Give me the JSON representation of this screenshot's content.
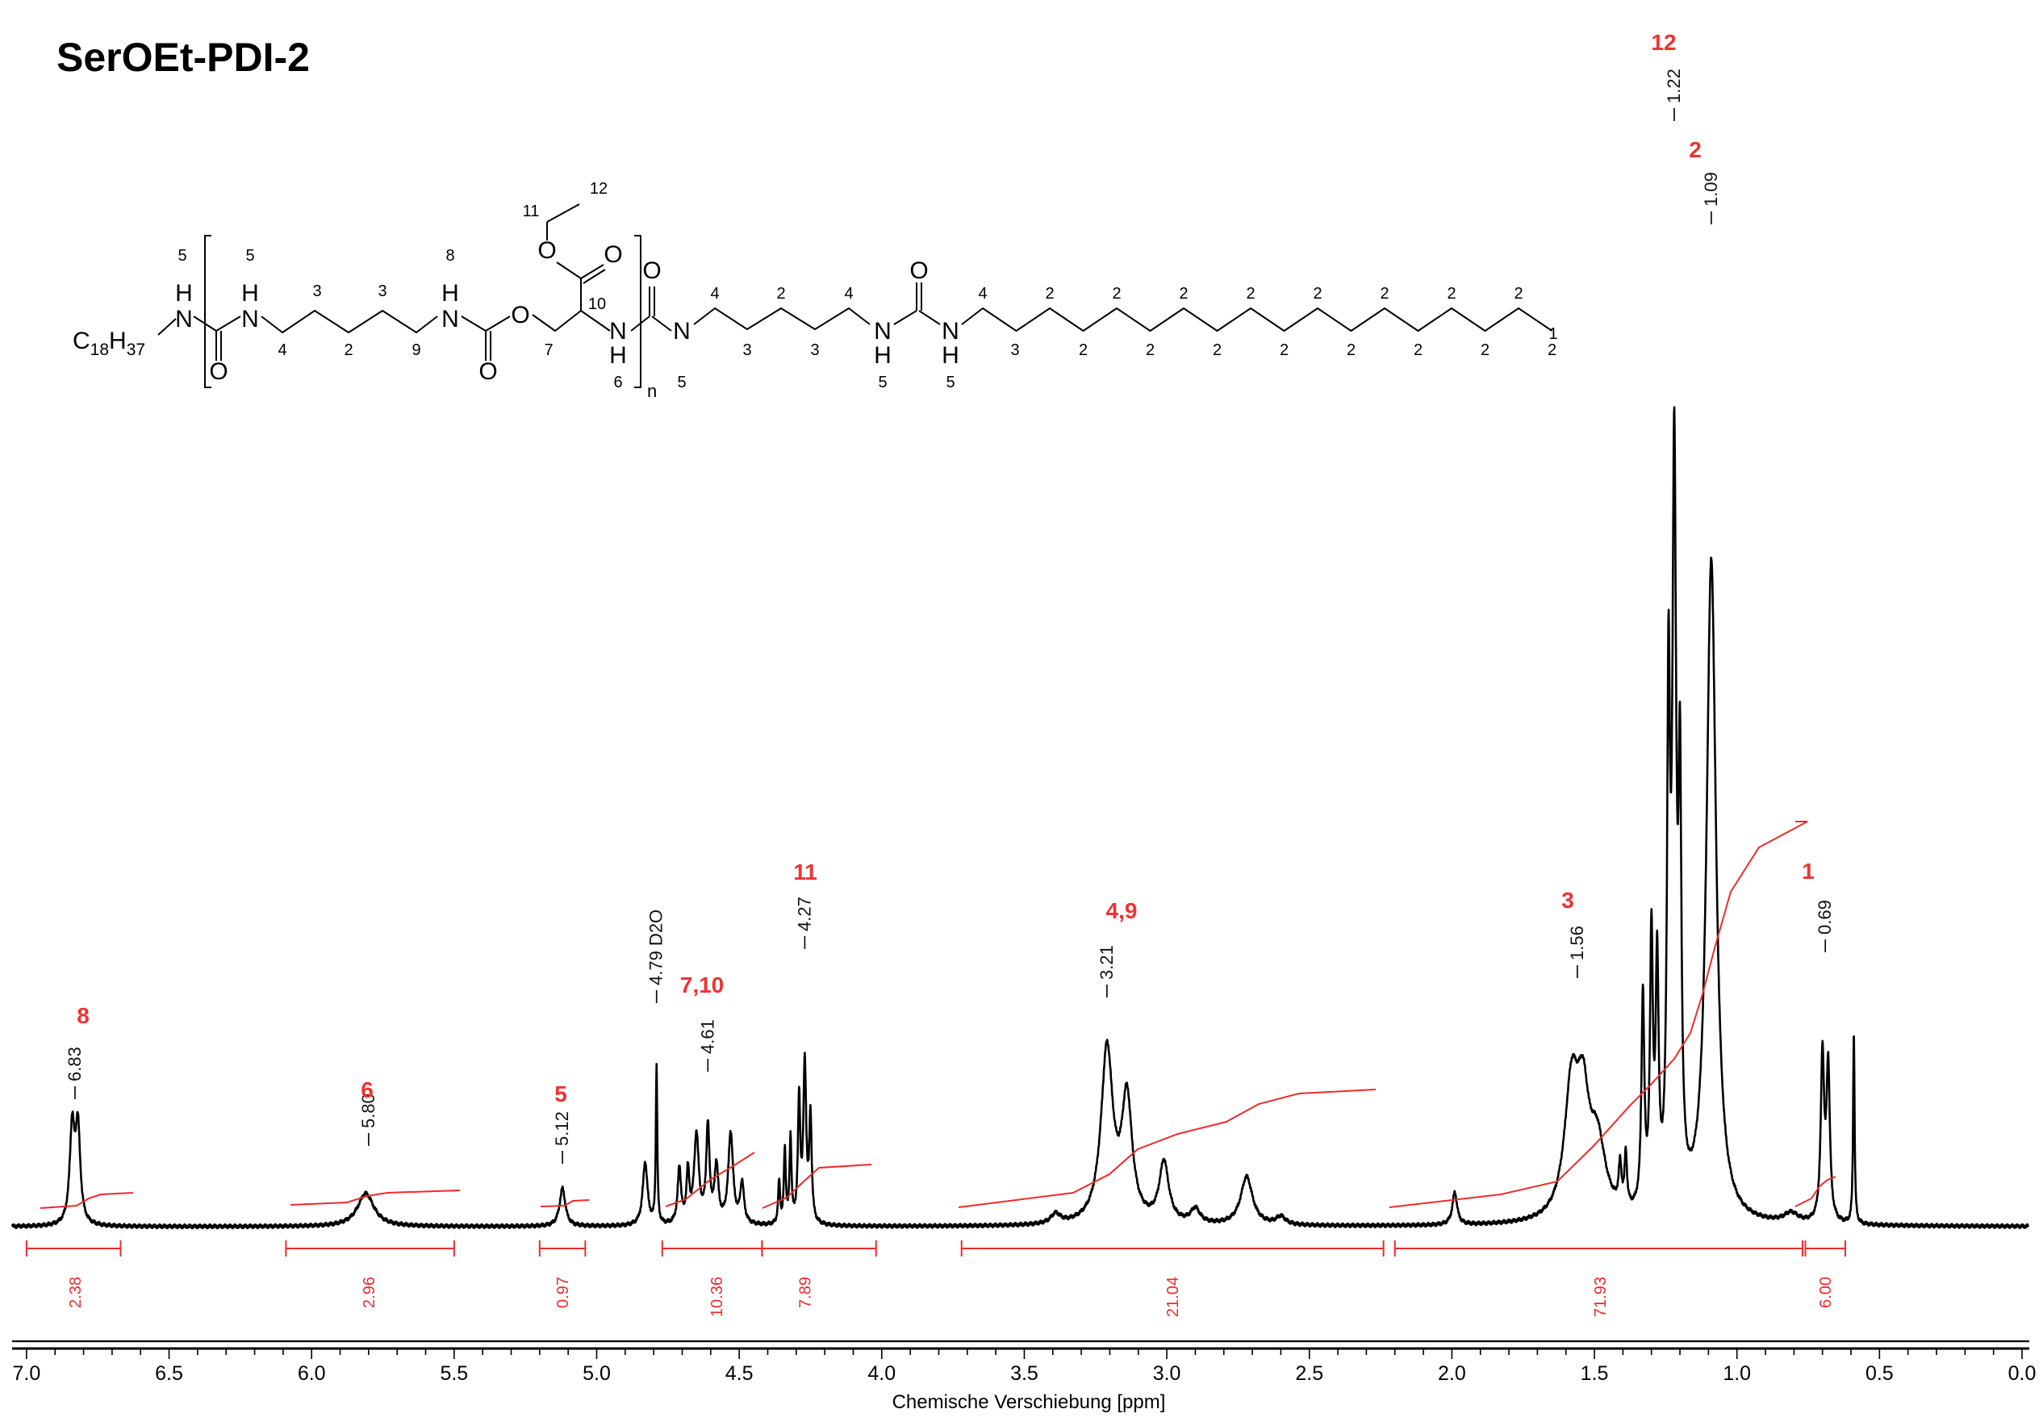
{
  "title": "SerOEt-PDI-2",
  "chart_data": {
    "type": "line",
    "title": "SerOEt-PDI-2",
    "xlabel": "Chemische Verschiebung [ppm]",
    "ylabel": "",
    "xlim": [
      7.05,
      0.0
    ],
    "reversed_x": true,
    "x_ticks": [
      "7.0",
      "6.5",
      "6.0",
      "5.5",
      "5.0",
      "4.5",
      "4.0",
      "3.5",
      "3.0",
      "2.5",
      "2.0",
      "1.5",
      "1.0",
      "0.5",
      "0.0"
    ],
    "x_tick_values": [
      7.0,
      6.5,
      6.0,
      5.5,
      5.0,
      4.5,
      4.0,
      3.5,
      3.0,
      2.5,
      2.0,
      1.5,
      1.0,
      0.5,
      0.0
    ],
    "peak_labels": [
      {
        "ppm": 6.83,
        "label": "6.83"
      },
      {
        "ppm": 5.8,
        "label": "5.80"
      },
      {
        "ppm": 5.12,
        "label": "5.12"
      },
      {
        "ppm": 4.79,
        "label": "4.79 D2O"
      },
      {
        "ppm": 4.61,
        "label": "4.61"
      },
      {
        "ppm": 4.27,
        "label": "4.27"
      },
      {
        "ppm": 3.21,
        "label": "3.21"
      },
      {
        "ppm": 1.56,
        "label": "1.56"
      },
      {
        "ppm": 1.22,
        "label": "1.22"
      },
      {
        "ppm": 1.09,
        "label": "1.09"
      },
      {
        "ppm": 0.69,
        "label": "0.69"
      }
    ],
    "assignments": [
      {
        "ppm": 6.83,
        "label": "8"
      },
      {
        "ppm": 5.8,
        "label": "6"
      },
      {
        "ppm": 5.12,
        "label": "5"
      },
      {
        "ppm": 4.58,
        "label": "7,10"
      },
      {
        "ppm": 4.3,
        "label": "11"
      },
      {
        "ppm": 3.15,
        "label": "4,9"
      },
      {
        "ppm": 1.56,
        "label": "3"
      },
      {
        "ppm": 1.22,
        "label": "12"
      },
      {
        "ppm": 1.09,
        "label": "2"
      },
      {
        "ppm": 0.69,
        "label": "1"
      }
    ],
    "integrals": [
      {
        "from": 7.0,
        "to": 6.67,
        "center": 6.83,
        "value": "2.38"
      },
      {
        "from": 6.09,
        "to": 5.5,
        "center": 5.8,
        "value": "2.96"
      },
      {
        "from": 5.2,
        "to": 5.04,
        "center": 5.12,
        "value": "0.97"
      },
      {
        "from": 4.77,
        "to": 4.42,
        "center": 4.58,
        "value": "10.36"
      },
      {
        "from": 4.42,
        "to": 4.02,
        "center": 4.27,
        "value": "7.89"
      },
      {
        "from": 3.72,
        "to": 2.24,
        "center": 2.98,
        "value": "21.04"
      },
      {
        "from": 2.2,
        "to": 0.77,
        "center": 1.48,
        "value": "71.93"
      },
      {
        "from": 0.76,
        "to": 0.62,
        "center": 0.69,
        "value": "6.00"
      }
    ],
    "series": [
      {
        "color": "#000000",
        "peaks": [
          {
            "ppm": 6.84,
            "height": 0.118,
            "width": 0.01
          },
          {
            "ppm": 6.82,
            "height": 0.118,
            "width": 0.01
          },
          {
            "ppm": 5.81,
            "height": 0.041,
            "width": 0.035
          },
          {
            "ppm": 5.12,
            "height": 0.047,
            "width": 0.012
          },
          {
            "ppm": 4.83,
            "height": 0.078,
            "width": 0.01
          },
          {
            "ppm": 4.79,
            "height": 0.196,
            "width": 0.003
          },
          {
            "ppm": 4.71,
            "height": 0.069,
            "width": 0.007
          },
          {
            "ppm": 4.68,
            "height": 0.062,
            "width": 0.006
          },
          {
            "ppm": 4.65,
            "height": 0.11,
            "width": 0.01
          },
          {
            "ppm": 4.61,
            "height": 0.118,
            "width": 0.007
          },
          {
            "ppm": 4.58,
            "height": 0.07,
            "width": 0.008
          },
          {
            "ppm": 4.53,
            "height": 0.113,
            "width": 0.01
          },
          {
            "ppm": 4.49,
            "height": 0.05,
            "width": 0.008
          },
          {
            "ppm": 4.36,
            "height": 0.052,
            "width": 0.004
          },
          {
            "ppm": 4.34,
            "height": 0.09,
            "width": 0.004
          },
          {
            "ppm": 4.32,
            "height": 0.105,
            "width": 0.004
          },
          {
            "ppm": 4.29,
            "height": 0.15,
            "width": 0.005
          },
          {
            "ppm": 4.27,
            "height": 0.195,
            "width": 0.006
          },
          {
            "ppm": 4.25,
            "height": 0.13,
            "width": 0.005
          },
          {
            "ppm": 3.39,
            "height": 0.012,
            "width": 0.02
          },
          {
            "ppm": 3.21,
            "height": 0.215,
            "width": 0.025
          },
          {
            "ppm": 3.14,
            "height": 0.15,
            "width": 0.022
          },
          {
            "ppm": 3.01,
            "height": 0.075,
            "width": 0.02
          },
          {
            "ppm": 2.9,
            "height": 0.018,
            "width": 0.02
          },
          {
            "ppm": 2.72,
            "height": 0.06,
            "width": 0.025
          },
          {
            "ppm": 2.6,
            "height": 0.01,
            "width": 0.02
          },
          {
            "ppm": 1.99,
            "height": 0.04,
            "width": 0.01
          },
          {
            "ppm": 1.58,
            "height": 0.16,
            "width": 0.03
          },
          {
            "ppm": 1.54,
            "height": 0.12,
            "width": 0.025
          },
          {
            "ppm": 1.49,
            "height": 0.09,
            "width": 0.035
          },
          {
            "ppm": 1.41,
            "height": 0.05,
            "width": 0.006
          },
          {
            "ppm": 1.39,
            "height": 0.065,
            "width": 0.005
          },
          {
            "ppm": 1.33,
            "height": 0.26,
            "width": 0.006
          },
          {
            "ppm": 1.3,
            "height": 0.33,
            "width": 0.006
          },
          {
            "ppm": 1.28,
            "height": 0.29,
            "width": 0.006
          },
          {
            "ppm": 1.24,
            "height": 0.6,
            "width": 0.006
          },
          {
            "ppm": 1.22,
            "height": 0.9,
            "width": 0.008
          },
          {
            "ppm": 1.2,
            "height": 0.48,
            "width": 0.006
          },
          {
            "ppm": 1.09,
            "height": 0.82,
            "width": 0.02
          },
          {
            "ppm": 0.81,
            "height": 0.012,
            "width": 0.03
          },
          {
            "ppm": 0.7,
            "height": 0.205,
            "width": 0.007
          },
          {
            "ppm": 0.68,
            "height": 0.19,
            "width": 0.007
          },
          {
            "ppm": 0.59,
            "height": 0.24,
            "width": 0.003
          }
        ]
      }
    ]
  },
  "structure": {
    "end_group_left": "C",
    "end_group_left_sub1": "18",
    "end_group_left_h": "H",
    "end_group_left_sub2": "37",
    "atoms": {
      "N": "N",
      "H": "H",
      "O": "O",
      "n": "n"
    },
    "numbers": [
      "5",
      "5",
      "3",
      "3",
      "4",
      "2",
      "9",
      "8",
      "7",
      "10",
      "11",
      "12",
      "6",
      "5",
      "4",
      "2",
      "4",
      "3",
      "3",
      "5",
      "5",
      "4",
      "2",
      "2",
      "2",
      "2",
      "2",
      "2",
      "2",
      "2",
      "3",
      "2",
      "2",
      "2",
      "2",
      "2",
      "2",
      "2",
      "1"
    ]
  }
}
